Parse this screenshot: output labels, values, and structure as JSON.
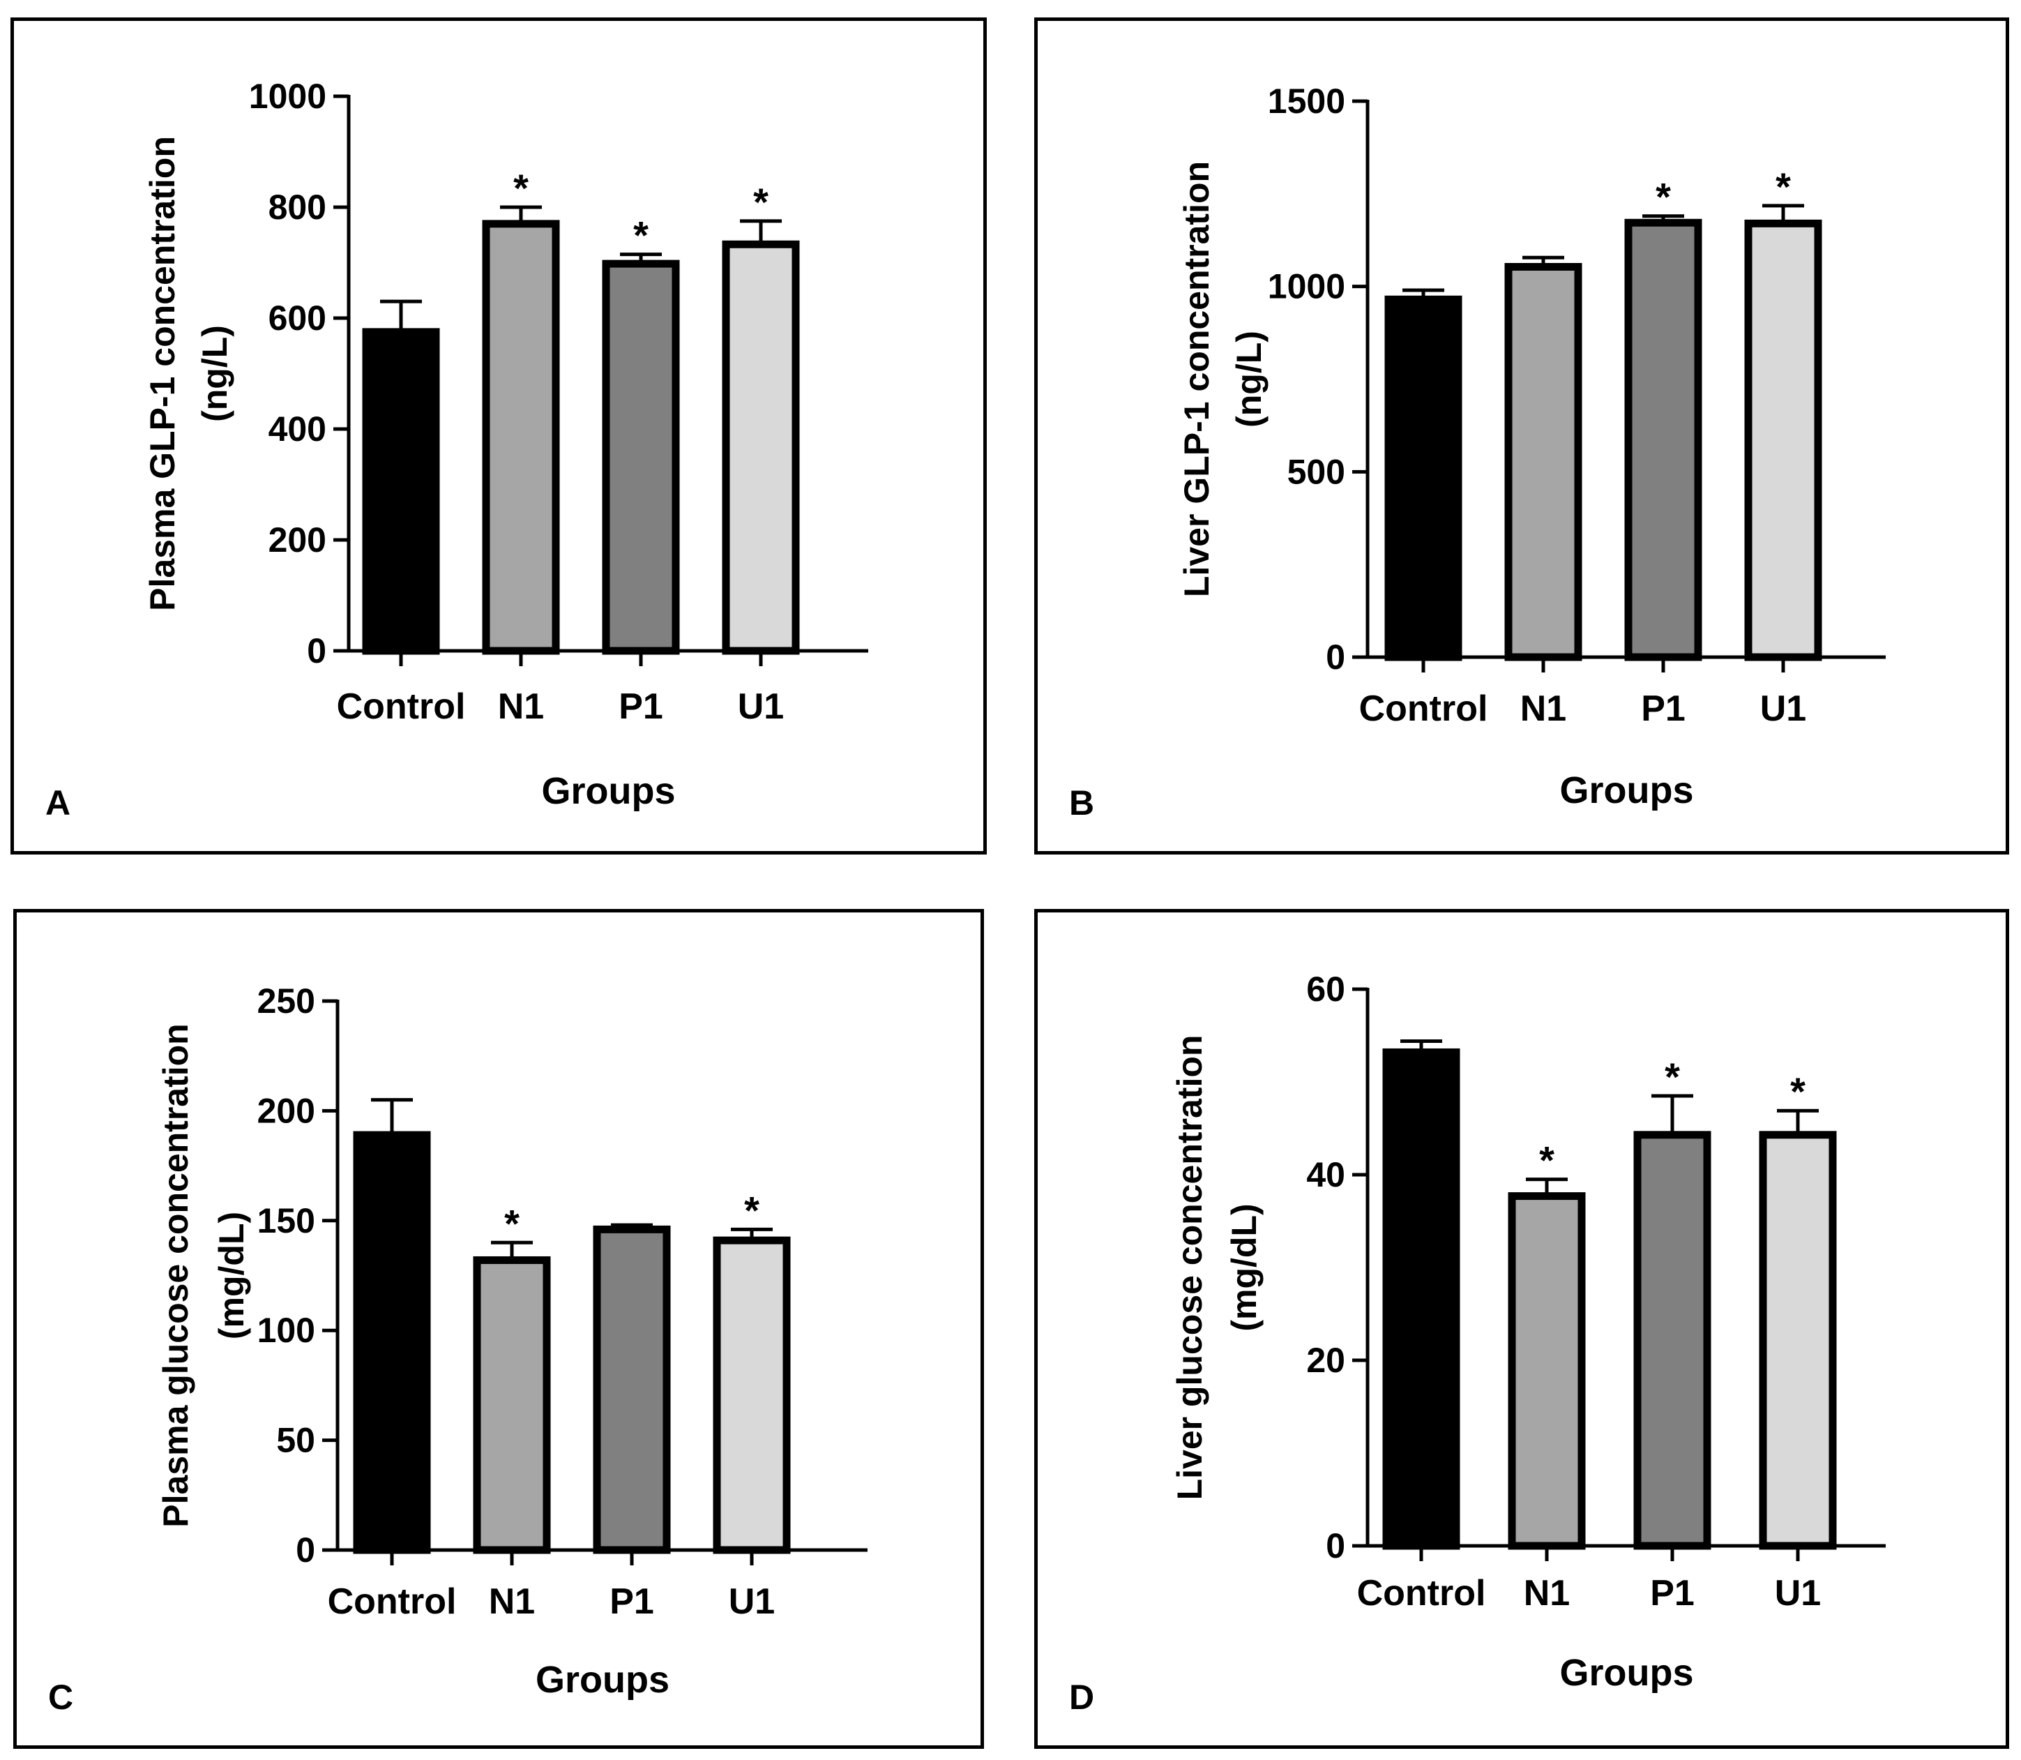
{
  "chart_data": [
    {
      "id": "A",
      "panel_label": "A",
      "type": "bar",
      "title": "",
      "xlabel": "Groups",
      "ylabel_lines": [
        "Plasma GLP-1 concentration",
        "(ng/L)"
      ],
      "categories": [
        "Control",
        "N1",
        "P1",
        "U1"
      ],
      "values": [
        575,
        770,
        698,
        733
      ],
      "errors": [
        55,
        30,
        17,
        42
      ],
      "significance": [
        "",
        "*",
        "*",
        "*"
      ],
      "bar_colors": [
        "#000000",
        "#a6a6a6",
        "#808080",
        "#d9d9d9"
      ],
      "ylim": [
        0,
        1000
      ],
      "yticks": [
        0,
        200,
        400,
        600,
        800,
        1000
      ],
      "ytick_labels": [
        "0",
        "200",
        "400",
        "600",
        "800",
        "1000"
      ],
      "grid": false
    },
    {
      "id": "B",
      "panel_label": "B",
      "type": "bar",
      "title": "",
      "xlabel": "Groups",
      "ylabel_lines": [
        "Liver GLP-1 concentration",
        "(ng/L)"
      ],
      "categories": [
        "Control",
        "N1",
        "P1",
        "U1"
      ],
      "values": [
        965,
        1053,
        1172,
        1170
      ],
      "errors": [
        25,
        25,
        18,
        48
      ],
      "significance": [
        "",
        "",
        "*",
        "*"
      ],
      "bar_colors": [
        "#000000",
        "#a6a6a6",
        "#808080",
        "#d9d9d9"
      ],
      "ylim": [
        0,
        1500
      ],
      "yticks": [
        0,
        500,
        1000,
        1500
      ],
      "ytick_labels": [
        "0",
        "500",
        "1000",
        "1500"
      ],
      "grid": false
    },
    {
      "id": "C",
      "panel_label": "C",
      "type": "bar",
      "title": "",
      "xlabel": "Groups",
      "ylabel_lines": [
        "Plasma glucose concentration",
        "(mg/dL)"
      ],
      "categories": [
        "Control",
        "N1",
        "P1",
        "U1"
      ],
      "values": [
        189,
        132,
        146,
        141
      ],
      "errors": [
        16,
        8,
        2,
        5
      ],
      "significance": [
        "",
        "*",
        "",
        "*"
      ],
      "bar_colors": [
        "#000000",
        "#a6a6a6",
        "#808080",
        "#d9d9d9"
      ],
      "ylim": [
        0,
        250
      ],
      "yticks": [
        0,
        50,
        100,
        150,
        200,
        250
      ],
      "ytick_labels": [
        "0",
        "50",
        "100",
        "150",
        "200",
        "250"
      ],
      "grid": false
    },
    {
      "id": "D",
      "panel_label": "D",
      "type": "bar",
      "title": "",
      "xlabel": "Groups",
      "ylabel_lines": [
        "Liver glucose concentration",
        "(mg/dL)"
      ],
      "categories": [
        "Control",
        "N1",
        "P1",
        "U1"
      ],
      "values": [
        53.2,
        37.7,
        44.3,
        44.3
      ],
      "errors": [
        1.2,
        1.8,
        4.2,
        2.6
      ],
      "significance": [
        "",
        "*",
        "*",
        "*"
      ],
      "bar_colors": [
        "#000000",
        "#a6a6a6",
        "#808080",
        "#d9d9d9"
      ],
      "ylim": [
        0,
        60
      ],
      "yticks": [
        0,
        20,
        40,
        60
      ],
      "ytick_labels": [
        "0",
        "20",
        "40",
        "60"
      ],
      "grid": false
    }
  ]
}
